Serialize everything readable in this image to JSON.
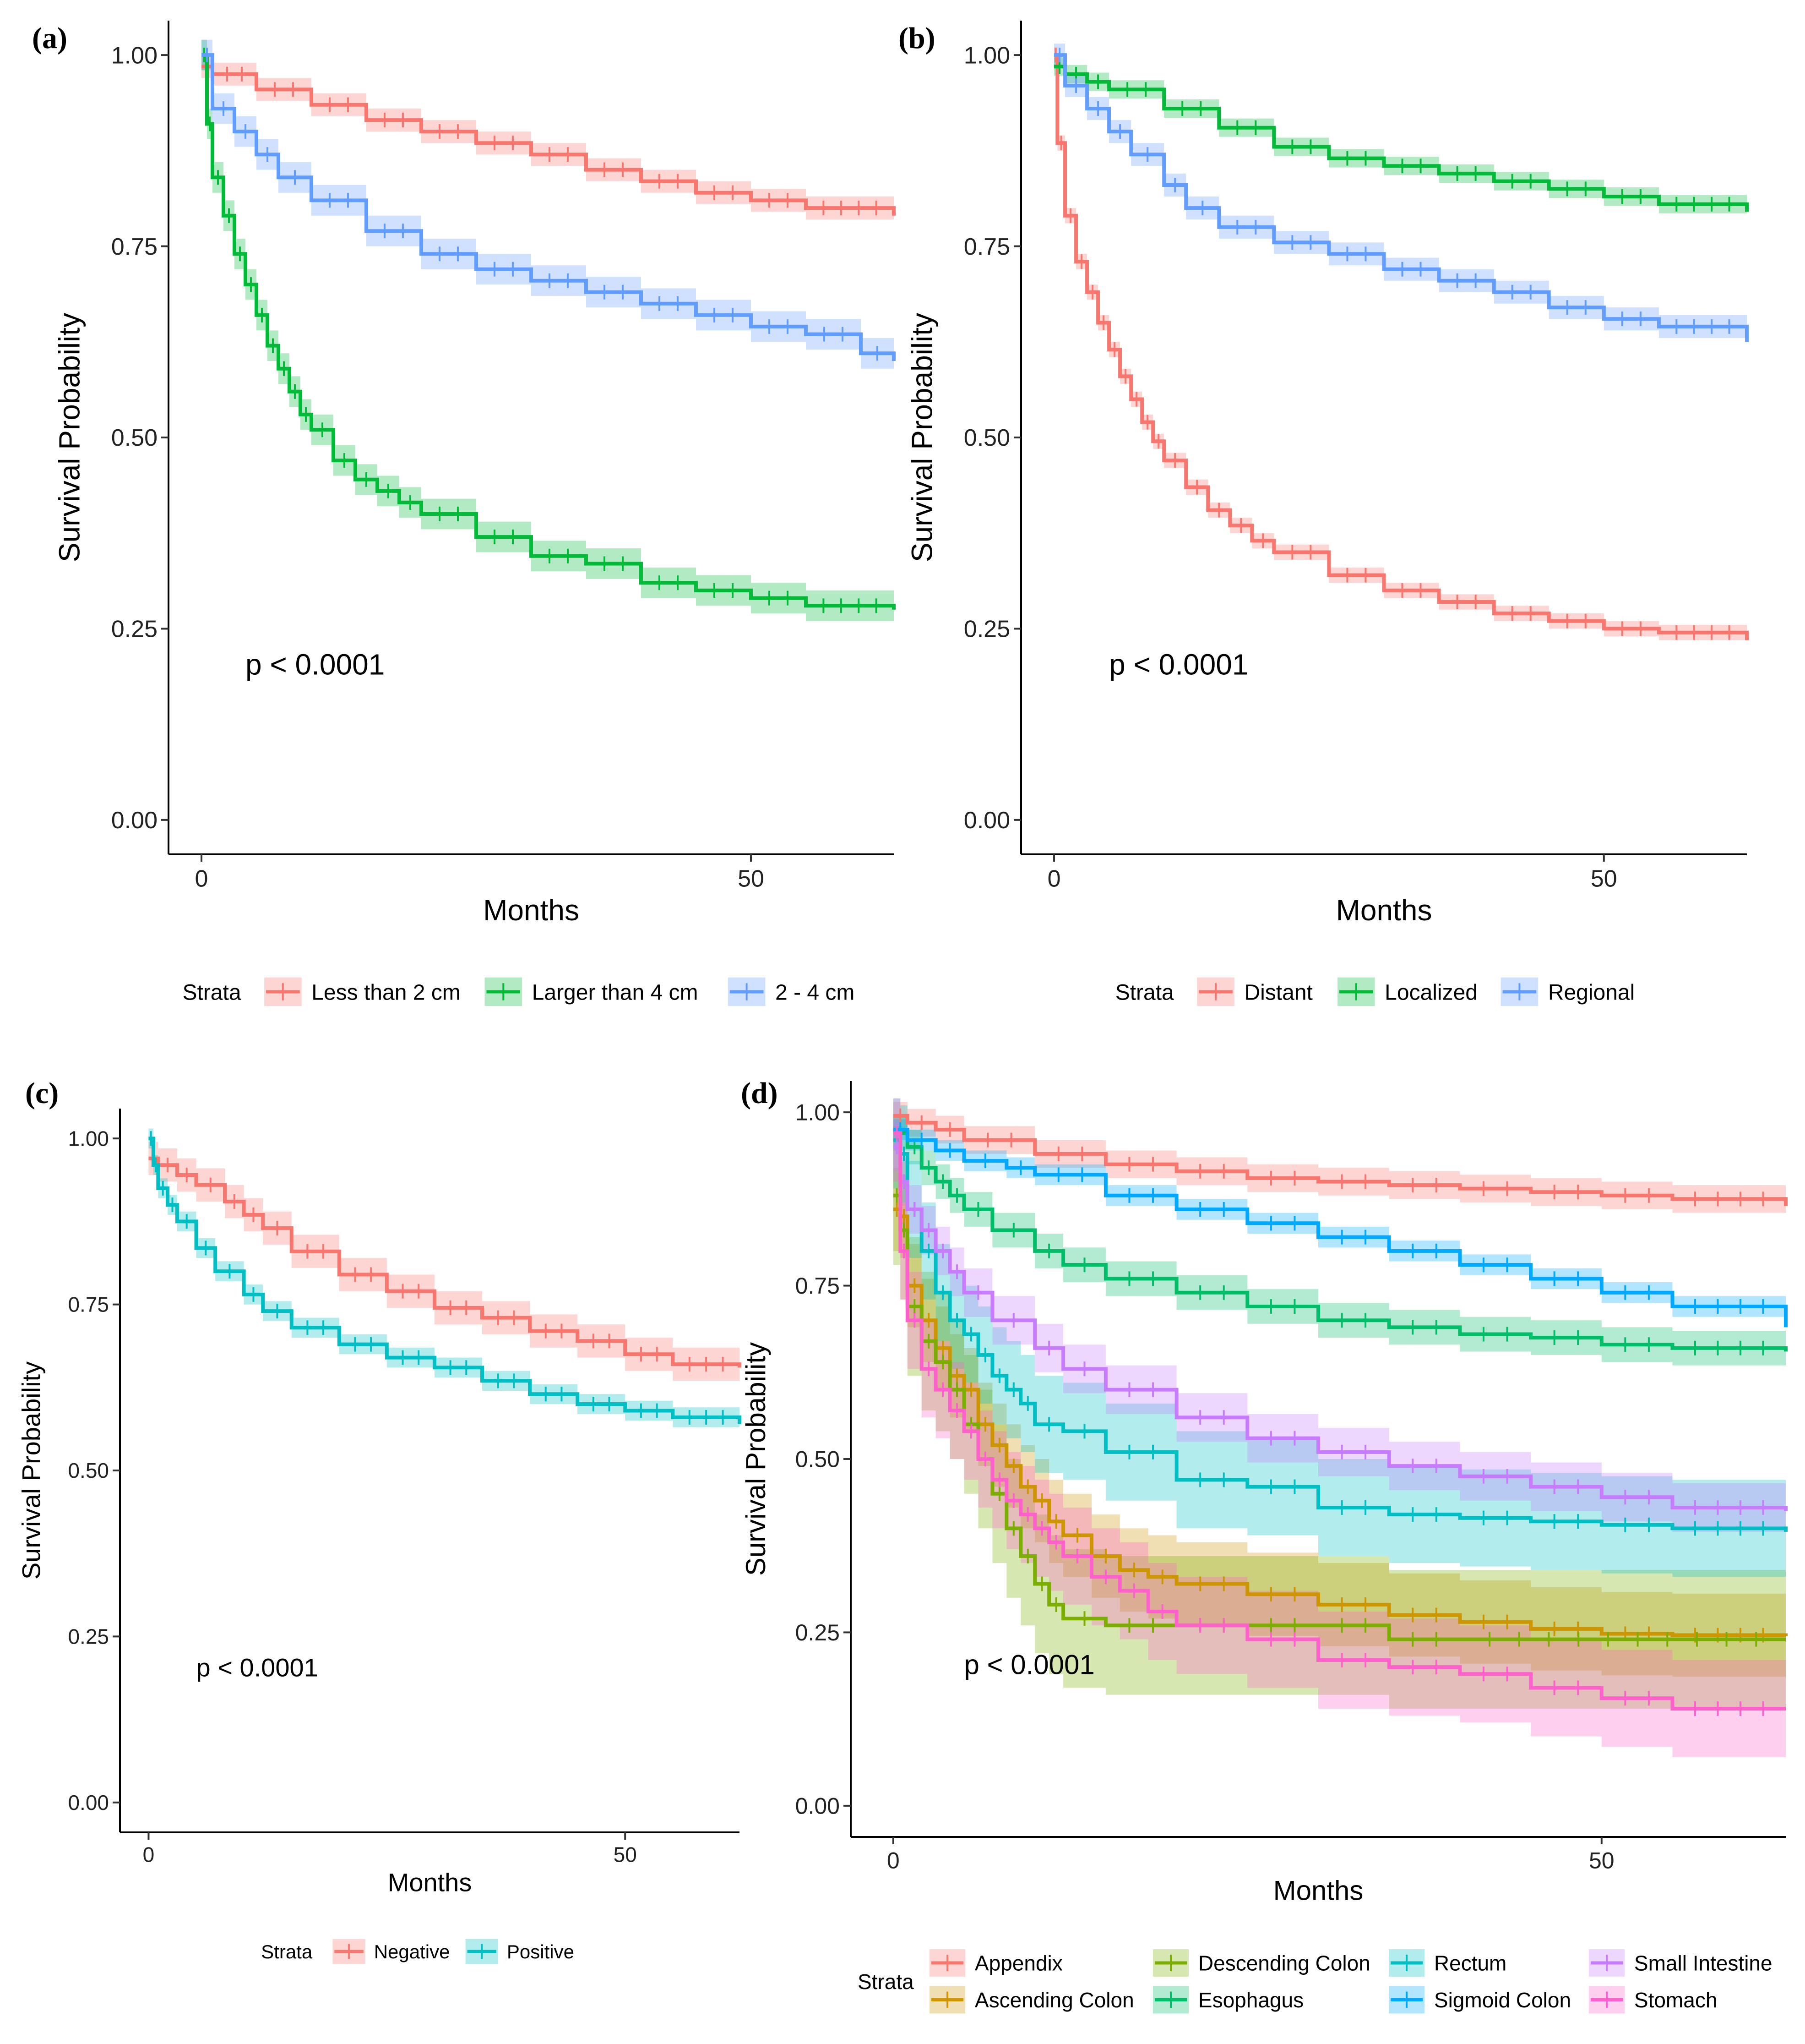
{
  "figure": {
    "panels_order": [
      "a",
      "b",
      "c",
      "d"
    ]
  },
  "chart_data": [
    {
      "id": "a",
      "panel_label": "(a)",
      "type": "line",
      "subtype": "kaplan-meier survival curves with 95% CI bands",
      "xlabel": "Months",
      "ylabel": "Survival Probability",
      "x_ticks": [
        "0",
        "50"
      ],
      "x_tick_values": [
        0,
        50
      ],
      "y_ticks": [
        "0.00",
        "0.25",
        "0.50",
        "0.75",
        "1.00"
      ],
      "y_tick_values": [
        0,
        0.25,
        0.5,
        0.75,
        1.0
      ],
      "xlim": [
        -3,
        63
      ],
      "ylim": [
        -0.045,
        1.045
      ],
      "annotation": "p < 0.0001",
      "annotation_pos": {
        "x": 4,
        "y": 0.19
      },
      "legend": {
        "title": "Strata",
        "placement": "bottom"
      },
      "series": [
        {
          "name": "Less than 2 cm",
          "color": "#F8766D",
          "x": [
            0,
            1,
            5,
            10,
            15,
            20,
            25,
            30,
            35,
            40,
            45,
            50,
            55,
            63
          ],
          "y": [
            0.985,
            0.975,
            0.955,
            0.935,
            0.915,
            0.9,
            0.885,
            0.87,
            0.85,
            0.835,
            0.82,
            0.81,
            0.8,
            0.79
          ],
          "band": 0.015
        },
        {
          "name": "Larger than 4 cm",
          "color": "#00BA38",
          "x": [
            0,
            0.5,
            1,
            2,
            3,
            4,
            5,
            6,
            7,
            8,
            9,
            10,
            12,
            14,
            16,
            18,
            20,
            25,
            30,
            35,
            40,
            45,
            50,
            55,
            63
          ],
          "y": [
            1.0,
            0.91,
            0.84,
            0.79,
            0.74,
            0.7,
            0.66,
            0.62,
            0.59,
            0.56,
            0.53,
            0.51,
            0.47,
            0.445,
            0.43,
            0.415,
            0.4,
            0.37,
            0.345,
            0.335,
            0.31,
            0.3,
            0.29,
            0.28,
            0.275
          ],
          "band": 0.02
        },
        {
          "name": "2 - 4 cm",
          "color": "#619CFF",
          "x": [
            0,
            1,
            3,
            5,
            7,
            10,
            15,
            20,
            25,
            30,
            35,
            40,
            45,
            50,
            55,
            60,
            63
          ],
          "y": [
            1.0,
            0.93,
            0.9,
            0.87,
            0.84,
            0.81,
            0.77,
            0.74,
            0.72,
            0.705,
            0.69,
            0.675,
            0.66,
            0.645,
            0.635,
            0.61,
            0.6
          ],
          "band": 0.02
        }
      ],
      "censor_marks": true
    },
    {
      "id": "b",
      "panel_label": "(b)",
      "type": "line",
      "subtype": "kaplan-meier survival curves with 95% CI bands",
      "xlabel": "Months",
      "ylabel": "Survival Probability",
      "x_ticks": [
        "0",
        "50"
      ],
      "x_tick_values": [
        0,
        50
      ],
      "y_ticks": [
        "0.00",
        "0.25",
        "0.50",
        "0.75",
        "1.00"
      ],
      "y_tick_values": [
        0,
        0.25,
        0.5,
        0.75,
        1.0
      ],
      "xlim": [
        -3,
        63
      ],
      "ylim": [
        -0.045,
        1.045
      ],
      "annotation": "p < 0.0001",
      "annotation_pos": {
        "x": 5,
        "y": 0.19
      },
      "legend": {
        "title": "Strata",
        "placement": "bottom"
      },
      "series": [
        {
          "name": "Distant",
          "color": "#F8766D",
          "x": [
            0,
            0.3,
            1,
            2,
            3,
            4,
            5,
            6,
            7,
            8,
            9,
            10,
            12,
            14,
            16,
            18,
            20,
            25,
            30,
            35,
            40,
            45,
            50,
            55,
            63
          ],
          "y": [
            1.0,
            0.885,
            0.79,
            0.73,
            0.69,
            0.65,
            0.615,
            0.58,
            0.55,
            0.52,
            0.495,
            0.47,
            0.435,
            0.405,
            0.385,
            0.365,
            0.35,
            0.32,
            0.3,
            0.285,
            0.27,
            0.26,
            0.25,
            0.245,
            0.235
          ],
          "band": 0.01
        },
        {
          "name": "Localized",
          "color": "#00BA38",
          "x": [
            0,
            1,
            3,
            5,
            10,
            15,
            20,
            25,
            30,
            35,
            40,
            45,
            50,
            55,
            63
          ],
          "y": [
            0.985,
            0.975,
            0.965,
            0.955,
            0.93,
            0.905,
            0.88,
            0.865,
            0.855,
            0.845,
            0.835,
            0.825,
            0.815,
            0.805,
            0.795
          ],
          "band": 0.012
        },
        {
          "name": "Regional",
          "color": "#619CFF",
          "x": [
            0,
            1,
            3,
            5,
            7,
            10,
            12,
            15,
            20,
            25,
            30,
            35,
            40,
            45,
            50,
            55,
            63
          ],
          "y": [
            1.0,
            0.96,
            0.93,
            0.9,
            0.87,
            0.83,
            0.8,
            0.775,
            0.755,
            0.74,
            0.72,
            0.705,
            0.69,
            0.67,
            0.655,
            0.645,
            0.625
          ],
          "band": 0.015
        }
      ],
      "censor_marks": true
    },
    {
      "id": "c",
      "panel_label": "(c)",
      "type": "line",
      "subtype": "kaplan-meier survival curves with 95% CI bands",
      "xlabel": "Months",
      "ylabel": "Survival Probability",
      "x_ticks": [
        "0",
        "50"
      ],
      "x_tick_values": [
        0,
        50
      ],
      "y_ticks": [
        "0.00",
        "0.25",
        "0.50",
        "0.75",
        "1.00"
      ],
      "y_tick_values": [
        0,
        0.25,
        0.5,
        0.75,
        1.0
      ],
      "xlim": [
        -3,
        62
      ],
      "ylim": [
        -0.045,
        1.045
      ],
      "annotation": "p < 0.0001",
      "annotation_pos": {
        "x": 5,
        "y": 0.19
      },
      "legend": {
        "title": "Strata",
        "placement": "bottom"
      },
      "series": [
        {
          "name": "Negative",
          "color": "#F8766D",
          "x": [
            0,
            1,
            3,
            5,
            8,
            10,
            12,
            15,
            20,
            25,
            30,
            35,
            40,
            45,
            50,
            55,
            62
          ],
          "y": [
            0.97,
            0.96,
            0.945,
            0.93,
            0.905,
            0.885,
            0.865,
            0.83,
            0.795,
            0.77,
            0.745,
            0.73,
            0.71,
            0.695,
            0.675,
            0.66,
            0.655
          ],
          "band": 0.025
        },
        {
          "name": "Positive",
          "color": "#00BFC4",
          "x": [
            0,
            0.5,
            1,
            2,
            3,
            5,
            7,
            10,
            12,
            15,
            20,
            25,
            30,
            35,
            40,
            45,
            50,
            55,
            62
          ],
          "y": [
            1.0,
            0.96,
            0.925,
            0.9,
            0.875,
            0.835,
            0.8,
            0.765,
            0.74,
            0.715,
            0.69,
            0.67,
            0.655,
            0.635,
            0.615,
            0.6,
            0.59,
            0.58,
            0.57
          ],
          "band": 0.015
        }
      ],
      "censor_marks": true
    },
    {
      "id": "d",
      "panel_label": "(d)",
      "type": "line",
      "subtype": "kaplan-meier survival curves with 95% CI bands",
      "xlabel": "Months",
      "ylabel": "Survival Probability",
      "x_ticks": [
        "0",
        "50"
      ],
      "x_tick_values": [
        0,
        50
      ],
      "y_ticks": [
        "0.00",
        "0.25",
        "0.50",
        "0.75",
        "1.00"
      ],
      "y_tick_values": [
        0,
        0.25,
        0.5,
        0.75,
        1.0
      ],
      "xlim": [
        -3,
        63
      ],
      "ylim": [
        -0.045,
        1.045
      ],
      "annotation": "p < 0.0001",
      "annotation_pos": {
        "x": 5,
        "y": 0.19
      },
      "legend": {
        "title": "Strata",
        "placement": "bottom"
      },
      "series": [
        {
          "name": "Appendix",
          "color": "#F8766D",
          "x": [
            0,
            1,
            3,
            5,
            10,
            15,
            20,
            25,
            30,
            35,
            40,
            45,
            50,
            55,
            63
          ],
          "y": [
            0.995,
            0.985,
            0.975,
            0.96,
            0.94,
            0.925,
            0.915,
            0.905,
            0.9,
            0.895,
            0.89,
            0.885,
            0.88,
            0.875,
            0.865
          ],
          "band": 0.02
        },
        {
          "name": "Ascending Colon",
          "color": "#CD9600",
          "x": [
            0,
            0.5,
            1,
            2,
            3,
            4,
            5,
            6,
            7,
            8,
            9,
            10,
            11,
            12,
            14,
            16,
            18,
            20,
            25,
            30,
            35,
            40,
            45,
            50,
            55,
            63
          ],
          "y": [
            0.86,
            0.85,
            0.75,
            0.7,
            0.66,
            0.62,
            0.6,
            0.55,
            0.52,
            0.49,
            0.46,
            0.44,
            0.41,
            0.39,
            0.36,
            0.34,
            0.33,
            0.32,
            0.305,
            0.29,
            0.275,
            0.265,
            0.255,
            0.248,
            0.246,
            0.245
          ],
          "band": 0.06
        },
        {
          "name": "Descending Colon",
          "color": "#7CAE00",
          "x": [
            0,
            0.5,
            1,
            2,
            3,
            4,
            5,
            6,
            7,
            8,
            9,
            10,
            11,
            12,
            15,
            20,
            25,
            30,
            35,
            40,
            63
          ],
          "y": [
            0.88,
            0.83,
            0.72,
            0.67,
            0.64,
            0.6,
            0.55,
            0.5,
            0.45,
            0.4,
            0.36,
            0.32,
            0.29,
            0.27,
            0.26,
            0.26,
            0.26,
            0.26,
            0.24,
            0.24,
            0.24
          ],
          "band": 0.1
        },
        {
          "name": "Esophagus",
          "color": "#00BE67",
          "x": [
            0,
            1,
            2,
            3,
            4,
            5,
            7,
            10,
            12,
            15,
            20,
            25,
            30,
            35,
            40,
            45,
            50,
            55,
            63
          ],
          "y": [
            0.97,
            0.95,
            0.92,
            0.9,
            0.88,
            0.86,
            0.83,
            0.8,
            0.78,
            0.76,
            0.74,
            0.72,
            0.7,
            0.69,
            0.68,
            0.675,
            0.665,
            0.66,
            0.655
          ],
          "band": 0.025
        },
        {
          "name": "Rectum",
          "color": "#00BFC4",
          "x": [
            0,
            0.5,
            1,
            2,
            3,
            4,
            5,
            6,
            7,
            8,
            9,
            10,
            12,
            15,
            20,
            25,
            30,
            35,
            40,
            45,
            50,
            55,
            63
          ],
          "y": [
            0.96,
            0.94,
            0.86,
            0.8,
            0.74,
            0.7,
            0.68,
            0.65,
            0.62,
            0.6,
            0.58,
            0.55,
            0.54,
            0.51,
            0.47,
            0.46,
            0.43,
            0.42,
            0.415,
            0.41,
            0.405,
            0.4,
            0.395
          ],
          "band": 0.07
        },
        {
          "name": "Sigmoid Colon",
          "color": "#00A9FF",
          "x": [
            0,
            1,
            3,
            5,
            8,
            10,
            15,
            20,
            25,
            30,
            35,
            40,
            45,
            50,
            55,
            63
          ],
          "y": [
            0.975,
            0.96,
            0.945,
            0.93,
            0.92,
            0.91,
            0.88,
            0.86,
            0.84,
            0.82,
            0.8,
            0.78,
            0.76,
            0.74,
            0.72,
            0.69
          ],
          "band": 0.015
        },
        {
          "name": "Small Intestine",
          "color": "#C77CFF",
          "x": [
            0,
            0.5,
            1,
            2,
            3,
            4,
            5,
            7,
            10,
            12,
            15,
            20,
            25,
            30,
            35,
            40,
            45,
            50,
            55,
            63
          ],
          "y": [
            0.95,
            0.9,
            0.86,
            0.83,
            0.8,
            0.77,
            0.74,
            0.7,
            0.66,
            0.63,
            0.6,
            0.56,
            0.53,
            0.51,
            0.49,
            0.475,
            0.46,
            0.445,
            0.43,
            0.425
          ],
          "band": 0.035
        },
        {
          "name": "Stomach",
          "color": "#FF61CC",
          "x": [
            0,
            0.5,
            1,
            2,
            3,
            4,
            5,
            6,
            7,
            8,
            9,
            10,
            11,
            12,
            14,
            16,
            18,
            20,
            25,
            30,
            35,
            40,
            45,
            50,
            55,
            63
          ],
          "y": [
            0.97,
            0.8,
            0.7,
            0.63,
            0.6,
            0.57,
            0.54,
            0.5,
            0.47,
            0.44,
            0.42,
            0.4,
            0.38,
            0.36,
            0.33,
            0.31,
            0.28,
            0.26,
            0.24,
            0.21,
            0.2,
            0.19,
            0.17,
            0.155,
            0.14,
            0.14
          ],
          "band": 0.07
        }
      ],
      "censor_marks": true
    }
  ]
}
